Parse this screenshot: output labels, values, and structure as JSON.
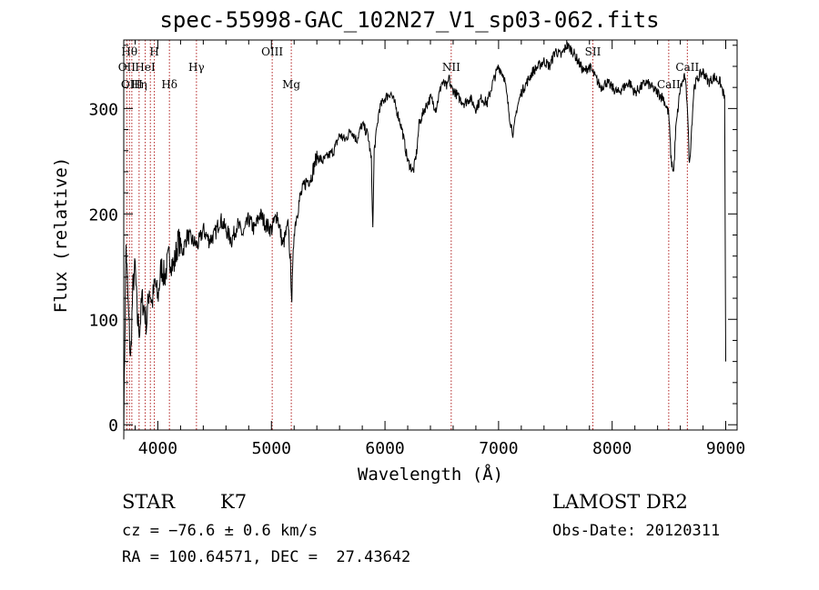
{
  "chart_data": {
    "type": "line",
    "title": "spec-55998-GAC_102N27_V1_sp03-062.fits",
    "xlabel": "Wavelength (Å)",
    "ylabel": "Flux (relative)",
    "xlim": [
      3700,
      9100
    ],
    "ylim": [
      -5,
      365
    ],
    "x_ticks": [
      4000,
      5000,
      6000,
      7000,
      8000,
      9000
    ],
    "y_ticks": [
      0,
      100,
      200,
      300
    ],
    "series": [
      {
        "x": [
          3700,
          3720,
          3740,
          3760,
          3780,
          3800,
          3820,
          3840,
          3860,
          3880,
          3900,
          3925,
          3950,
          3975,
          4000,
          4030,
          4060,
          4100,
          4140,
          4180,
          4220,
          4260,
          4300,
          4350,
          4400,
          4450,
          4500,
          4550,
          4600,
          4650,
          4700,
          4750,
          4800,
          4850,
          4900,
          4950,
          5000,
          5050,
          5100,
          5150,
          5180,
          5200,
          5250,
          5300,
          5350,
          5400,
          5450,
          5500,
          5550,
          5600,
          5650,
          5700,
          5750,
          5800,
          5850,
          5880,
          5893,
          5905,
          5950,
          6000,
          6050,
          6100,
          6150,
          6200,
          6250,
          6280,
          6300,
          6350,
          6400,
          6450,
          6500,
          6550,
          6563,
          6580,
          6620,
          6650,
          6700,
          6750,
          6800,
          6850,
          6900,
          6950,
          7000,
          7050,
          7100,
          7130,
          7160,
          7200,
          7250,
          7300,
          7350,
          7400,
          7450,
          7500,
          7550,
          7600,
          7650,
          7700,
          7750,
          7800,
          7850,
          7900,
          7950,
          8000,
          8050,
          8100,
          8150,
          8200,
          8250,
          8300,
          8350,
          8400,
          8450,
          8498,
          8520,
          8542,
          8560,
          8600,
          8640,
          8662,
          8680,
          8720,
          8760,
          8800,
          8850,
          8900,
          8950,
          8990,
          9000
        ],
        "y": [
          0,
          170,
          110,
          60,
          130,
          150,
          100,
          90,
          120,
          110,
          95,
          130,
          115,
          135,
          120,
          150,
          140,
          160,
          150,
          175,
          165,
          180,
          175,
          170,
          185,
          175,
          180,
          195,
          185,
          175,
          190,
          180,
          195,
          185,
          200,
          190,
          185,
          200,
          170,
          190,
          120,
          185,
          215,
          230,
          235,
          255,
          250,
          255,
          260,
          275,
          270,
          280,
          270,
          285,
          275,
          250,
          185,
          260,
          300,
          310,
          315,
          300,
          280,
          250,
          240,
          260,
          285,
          300,
          310,
          300,
          325,
          320,
          330,
          320,
          315,
          310,
          305,
          310,
          300,
          310,
          305,
          325,
          340,
          330,
          290,
          275,
          300,
          315,
          325,
          335,
          340,
          345,
          340,
          355,
          350,
          360,
          355,
          345,
          335,
          340,
          330,
          320,
          325,
          320,
          315,
          320,
          325,
          315,
          320,
          325,
          320,
          315,
          310,
          295,
          250,
          240,
          280,
          320,
          330,
          305,
          245,
          320,
          330,
          335,
          325,
          330,
          325,
          310,
          60
        ]
      }
    ],
    "reference_lines": [
      {
        "wavelength": 3727,
        "label": "OII",
        "row": 2
      },
      {
        "wavelength": 3750,
        "label": "Hθ",
        "row": 1
      },
      {
        "wavelength": 3771,
        "label": "OIII",
        "row": 3
      },
      {
        "wavelength": 3835,
        "label": "Hη",
        "row": 3
      },
      {
        "wavelength": 3889,
        "label": "HeI",
        "row": 2
      },
      {
        "wavelength": 3934,
        "label": "",
        "row": 0
      },
      {
        "wavelength": 3969,
        "label": "H",
        "row": 1
      },
      {
        "wavelength": 4102,
        "label": "Hδ",
        "row": 3
      },
      {
        "wavelength": 4340,
        "label": "Hγ",
        "row": 2
      },
      {
        "wavelength": 5007,
        "label": "OIII",
        "row": 1
      },
      {
        "wavelength": 5175,
        "label": "Mg",
        "row": 3
      },
      {
        "wavelength": 6583,
        "label": "NII",
        "row": 2
      },
      {
        "wavelength": 7830,
        "label": "SII",
        "row": 1
      },
      {
        "wavelength": 8498,
        "label": "CaII",
        "row": 3
      },
      {
        "wavelength": 8662,
        "label": "CaII",
        "row": 2
      }
    ]
  },
  "info": {
    "object_class": "STAR",
    "subclass": "K7",
    "survey": "LAMOST DR2",
    "redshift_line": "cz = −76.6 ± 0.6 km/s",
    "obs_date": "Obs-Date: 20120311",
    "coords": "RA = 100.64571, DEC =  27.43642"
  },
  "colors": {
    "spectrum": "#000000",
    "reference_lines": "#b22222",
    "axes": "#000000"
  }
}
